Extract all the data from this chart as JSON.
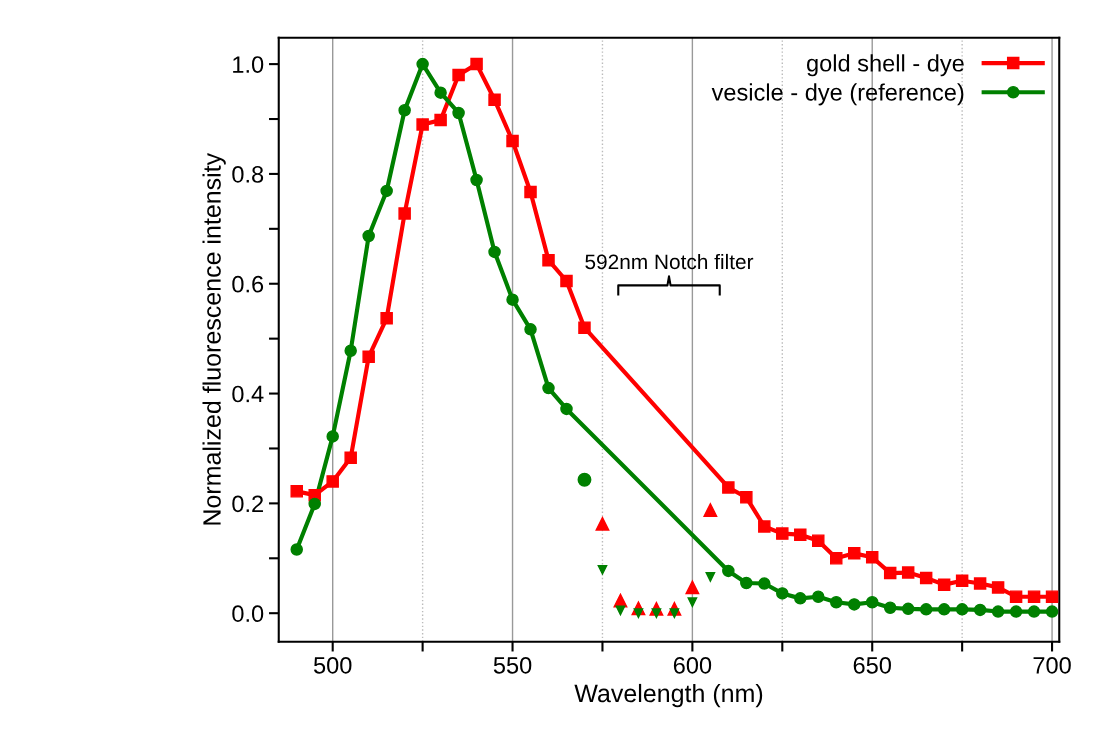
{
  "chart_data": {
    "type": "line",
    "xlabel": "Wavelength (nm)",
    "ylabel": "Normalized fluorescence intensity",
    "xlim": [
      485,
      702
    ],
    "ylim": [
      -0.052,
      1.048
    ],
    "xticks": [
      500,
      {
        "value": 525,
        "label": null
      },
      550,
      {
        "value": 575,
        "label": null
      },
      600,
      {
        "value": 625,
        "label": null
      },
      650,
      {
        "value": 675,
        "label": null
      },
      700
    ],
    "yticks": [
      {
        "value": 0.0,
        "label": "0.0"
      },
      {
        "value": 0.1,
        "label": null
      },
      0.2,
      {
        "value": 0.3,
        "label": null
      },
      0.4,
      {
        "value": 0.5,
        "label": null
      },
      0.6,
      {
        "value": 0.7,
        "label": null
      },
      0.8,
      {
        "value": 0.9,
        "label": null
      },
      {
        "value": 1.0,
        "label": "1.0"
      }
    ],
    "grid": "x",
    "legend": "top right",
    "line_style": "solid",
    "annotations": [
      "592nm Notch filter"
    ],
    "series": [
      {
        "name": "gold shell - dye",
        "color": "#ff0000",
        "marker": "square",
        "x": [
          490,
          495,
          500,
          505,
          510,
          515,
          520,
          525,
          530,
          535,
          540,
          545,
          550,
          555,
          560,
          565,
          570,
          610,
          615,
          620,
          625,
          630,
          635,
          640,
          645,
          650,
          655,
          660,
          665,
          670,
          675,
          680,
          685,
          690,
          695,
          700
        ],
        "values": [
          0.222,
          0.215,
          0.24,
          0.283,
          0.467,
          0.537,
          0.728,
          0.89,
          0.898,
          0.98,
          1.0,
          0.935,
          0.86,
          0.767,
          0.643,
          0.605,
          0.52,
          0.229,
          0.211,
          0.158,
          0.145,
          0.143,
          0.132,
          0.1,
          0.109,
          0.102,
          0.073,
          0.074,
          0.064,
          0.052,
          0.059,
          0.054,
          0.047,
          0.03,
          0.03,
          0.03
        ]
      },
      {
        "name": "vesicle - dye (reference)",
        "color": "#008000",
        "marker": "circle",
        "x": [
          490,
          495,
          500,
          505,
          510,
          515,
          520,
          525,
          530,
          535,
          540,
          545,
          550,
          555,
          560,
          565,
          610,
          615,
          620,
          625,
          630,
          635,
          640,
          645,
          650,
          655,
          660,
          665,
          670,
          675,
          680,
          685,
          690,
          695,
          700
        ],
        "values": [
          0.116,
          0.199,
          0.322,
          0.478,
          0.687,
          0.769,
          0.916,
          1.0,
          0.948,
          0.911,
          0.789,
          0.658,
          0.571,
          0.517,
          0.41,
          0.372,
          0.077,
          0.055,
          0.054,
          0.036,
          0.027,
          0.03,
          0.02,
          0.016,
          0.02,
          0.01,
          0.008,
          0.007,
          0.007,
          0.007,
          0.006,
          0.003,
          0.003,
          0.003,
          0.003
        ]
      },
      {
        "type": "scatter",
        "color": "#008000",
        "marker": "circle",
        "x": [
          570
        ],
        "values": [
          0.243
        ]
      },
      {
        "type": "scatter",
        "color": "#ff0000",
        "marker": "triangle",
        "x": [
          575,
          580,
          585,
          590,
          595,
          600,
          605
        ],
        "values": [
          0.163,
          0.023,
          0.009,
          0.008,
          0.008,
          0.047,
          0.188
        ]
      },
      {
        "type": "scatter",
        "color": "#008000",
        "marker": "triangle_down",
        "x": [
          575,
          580,
          585,
          590,
          595,
          600,
          605
        ],
        "values": [
          0.079,
          0.005,
          0.0,
          0.0,
          0.0,
          0.02,
          0.066
        ]
      }
    ]
  }
}
